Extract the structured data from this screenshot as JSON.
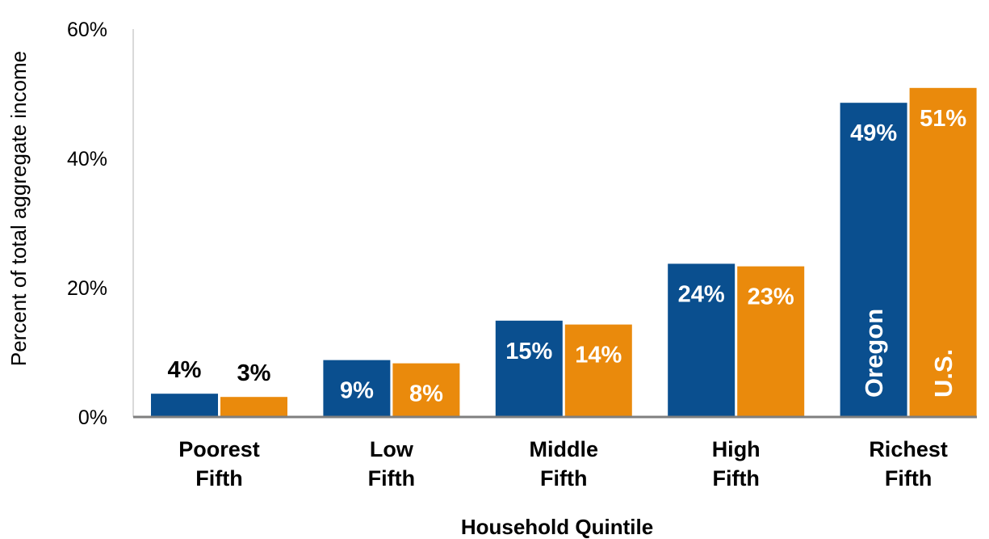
{
  "chart_data": {
    "type": "bar",
    "categories": [
      [
        "Poorest",
        "Fifth"
      ],
      [
        "Low",
        "Fifth"
      ],
      [
        "Middle",
        "Fifth"
      ],
      [
        "High",
        "Fifth"
      ],
      [
        "Richest",
        "Fifth"
      ]
    ],
    "series": [
      {
        "name": "Oregon",
        "color": "#0a4f8f",
        "values": [
          3.6,
          8.8,
          14.9,
          23.7,
          48.6
        ],
        "labels": [
          "4%",
          "9%",
          "15%",
          "24%",
          "49%"
        ]
      },
      {
        "name": "U.S.",
        "color": "#ea8a0c",
        "values": [
          3.1,
          8.3,
          14.3,
          23.3,
          50.9
        ],
        "labels": [
          "3%",
          "8%",
          "14%",
          "23%",
          "51%"
        ]
      }
    ],
    "xlabel": "Household Quintile",
    "ylabel": "Percent of total aggregate income",
    "ylim": [
      0,
      60
    ],
    "yticks": [
      0,
      20,
      40,
      60
    ],
    "ytick_labels": [
      "0%",
      "20%",
      "40%",
      "60%"
    ],
    "grid": false,
    "legend": "series names written inside the Richest Fifth bars"
  }
}
